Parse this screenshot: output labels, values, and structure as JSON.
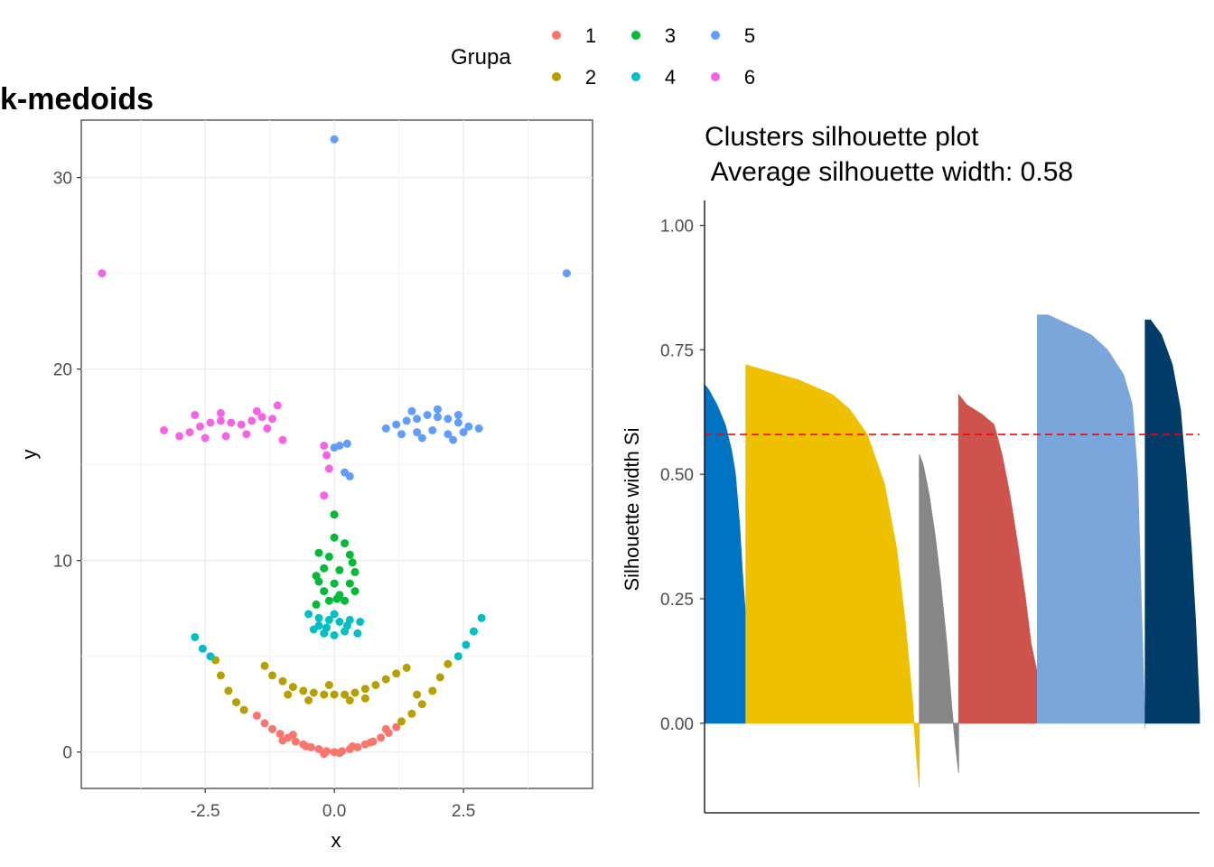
{
  "legend": {
    "title": "Grupa",
    "entries": [
      {
        "label": "1",
        "color": "#F8766D"
      },
      {
        "label": "2",
        "color": "#B79F00"
      },
      {
        "label": "3",
        "color": "#00BA38"
      },
      {
        "label": "4",
        "color": "#00BFC4"
      },
      {
        "label": "5",
        "color": "#619CFF"
      },
      {
        "label": "6",
        "color": "#F564E3"
      }
    ]
  },
  "chart_data": [
    {
      "type": "scatter",
      "title": "k-medoids",
      "xlabel": "x",
      "ylabel": "y",
      "xlim": [
        -4.9,
        5.0
      ],
      "ylim": [
        -1.9,
        33.0
      ],
      "xticks": [
        "-2.5",
        "0.0",
        "2.5"
      ],
      "xtick_values": [
        -2.5,
        0.0,
        2.5
      ],
      "yticks": [
        "0",
        "10",
        "20",
        "30"
      ],
      "ytick_values": [
        0,
        10,
        20,
        30
      ],
      "grid": true,
      "series": [
        {
          "name": "1",
          "color": "#F8766D",
          "points": [
            [
              -1.5,
              1.9
            ],
            [
              -1.35,
              1.5
            ],
            [
              -1.2,
              1.2
            ],
            [
              -1.05,
              0.95
            ],
            [
              -0.9,
              0.75
            ],
            [
              -0.75,
              0.55
            ],
            [
              -0.6,
              0.4
            ],
            [
              -0.45,
              0.25
            ],
            [
              -0.3,
              0.15
            ],
            [
              -0.15,
              0.05
            ],
            [
              0.0,
              0.0
            ],
            [
              0.15,
              0.05
            ],
            [
              0.3,
              0.15
            ],
            [
              0.45,
              0.25
            ],
            [
              0.6,
              0.4
            ],
            [
              0.75,
              0.55
            ],
            [
              0.9,
              0.75
            ],
            [
              1.05,
              1.0
            ],
            [
              1.2,
              1.3
            ],
            [
              -0.55,
              0.3
            ],
            [
              -0.2,
              -0.1
            ],
            [
              0.1,
              -0.05
            ],
            [
              0.35,
              0.3
            ],
            [
              0.7,
              0.5
            ],
            [
              1.0,
              1.2
            ],
            [
              -1.0,
              0.6
            ],
            [
              -0.8,
              0.9
            ]
          ]
        },
        {
          "name": "2",
          "color": "#B79F00",
          "points": [
            [
              -2.3,
              4.8
            ],
            [
              -2.2,
              4.0
            ],
            [
              -2.05,
              3.2
            ],
            [
              -1.9,
              2.6
            ],
            [
              -1.75,
              2.2
            ],
            [
              1.3,
              1.6
            ],
            [
              1.5,
              2.0
            ],
            [
              1.7,
              2.5
            ],
            [
              1.9,
              3.2
            ],
            [
              2.05,
              3.9
            ],
            [
              2.2,
              4.6
            ],
            [
              -1.35,
              4.5
            ],
            [
              -1.2,
              4.0
            ],
            [
              -1.0,
              3.7
            ],
            [
              -0.8,
              3.4
            ],
            [
              -0.6,
              3.2
            ],
            [
              -0.4,
              3.1
            ],
            [
              -0.2,
              3.0
            ],
            [
              0.0,
              3.0
            ],
            [
              0.2,
              3.0
            ],
            [
              0.4,
              3.1
            ],
            [
              0.6,
              3.3
            ],
            [
              0.8,
              3.5
            ],
            [
              1.0,
              3.8
            ],
            [
              1.2,
              4.1
            ],
            [
              1.4,
              4.4
            ],
            [
              -0.5,
              2.7
            ],
            [
              0.3,
              2.7
            ],
            [
              -0.1,
              3.5
            ],
            [
              0.6,
              2.8
            ],
            [
              -0.9,
              3.0
            ],
            [
              1.6,
              3.0
            ]
          ]
        },
        {
          "name": "3",
          "color": "#00BA38",
          "points": [
            [
              0.0,
              12.4
            ],
            [
              -0.3,
              10.4
            ],
            [
              0.3,
              10.3
            ],
            [
              -0.2,
              9.6
            ],
            [
              0.1,
              9.5
            ],
            [
              0.4,
              9.4
            ],
            [
              -0.3,
              8.9
            ],
            [
              0.0,
              8.8
            ],
            [
              0.3,
              8.8
            ],
            [
              -0.2,
              8.4
            ],
            [
              0.1,
              8.2
            ],
            [
              0.4,
              8.4
            ],
            [
              -0.1,
              7.9
            ],
            [
              0.2,
              7.9
            ],
            [
              -0.35,
              7.7
            ],
            [
              0.0,
              11.2
            ],
            [
              0.2,
              10.9
            ],
            [
              -0.1,
              10.2
            ],
            [
              0.35,
              9.9
            ],
            [
              -0.35,
              9.2
            ],
            [
              0.05,
              8.0
            ]
          ]
        },
        {
          "name": "4",
          "color": "#00BFC4",
          "points": [
            [
              -2.7,
              6.0
            ],
            [
              -2.55,
              5.4
            ],
            [
              -2.4,
              5.0
            ],
            [
              2.4,
              5.0
            ],
            [
              2.55,
              5.6
            ],
            [
              2.7,
              6.3
            ],
            [
              2.85,
              7.0
            ],
            [
              -0.5,
              7.2
            ],
            [
              -0.3,
              7.0
            ],
            [
              -0.1,
              6.9
            ],
            [
              0.1,
              6.8
            ],
            [
              0.3,
              6.9
            ],
            [
              0.5,
              6.8
            ],
            [
              -0.4,
              6.4
            ],
            [
              -0.2,
              6.2
            ],
            [
              0.0,
              6.1
            ],
            [
              0.2,
              6.3
            ],
            [
              0.45,
              6.2
            ],
            [
              -0.3,
              6.6
            ],
            [
              0.25,
              6.6
            ],
            [
              0.0,
              7.2
            ],
            [
              -0.15,
              6.5
            ]
          ]
        },
        {
          "name": "5",
          "color": "#619CFF",
          "points": [
            [
              0.0,
              32.0
            ],
            [
              4.5,
              25.0
            ],
            [
              1.0,
              16.9
            ],
            [
              1.2,
              17.1
            ],
            [
              1.4,
              17.3
            ],
            [
              1.6,
              17.4
            ],
            [
              1.8,
              17.6
            ],
            [
              2.0,
              17.5
            ],
            [
              2.2,
              17.4
            ],
            [
              2.4,
              17.2
            ],
            [
              2.6,
              17.0
            ],
            [
              2.8,
              16.9
            ],
            [
              1.3,
              16.6
            ],
            [
              1.6,
              16.7
            ],
            [
              1.9,
              16.8
            ],
            [
              2.2,
              16.6
            ],
            [
              2.5,
              16.7
            ],
            [
              1.5,
              17.8
            ],
            [
              2.0,
              17.9
            ],
            [
              2.4,
              17.6
            ],
            [
              1.7,
              16.4
            ],
            [
              2.3,
              16.3
            ],
            [
              0.0,
              15.9
            ],
            [
              0.1,
              16.0
            ],
            [
              0.2,
              14.6
            ],
            [
              0.25,
              16.1
            ],
            [
              0.3,
              14.4
            ]
          ]
        },
        {
          "name": "6",
          "color": "#F564E3",
          "points": [
            [
              -4.5,
              25.0
            ],
            [
              -3.3,
              16.8
            ],
            [
              -3.0,
              16.5
            ],
            [
              -2.8,
              16.7
            ],
            [
              -2.6,
              17.0
            ],
            [
              -2.4,
              17.2
            ],
            [
              -2.2,
              17.3
            ],
            [
              -2.0,
              17.2
            ],
            [
              -1.8,
              17.1
            ],
            [
              -1.6,
              17.3
            ],
            [
              -1.4,
              17.5
            ],
            [
              -1.2,
              17.4
            ],
            [
              -1.0,
              16.3
            ],
            [
              -2.5,
              16.4
            ],
            [
              -2.1,
              16.5
            ],
            [
              -1.7,
              16.6
            ],
            [
              -2.7,
              17.6
            ],
            [
              -2.2,
              17.7
            ],
            [
              -1.5,
              17.8
            ],
            [
              -1.1,
              18.1
            ],
            [
              -1.3,
              16.9
            ],
            [
              -0.2,
              13.4
            ],
            [
              -0.15,
              15.5
            ],
            [
              -0.1,
              14.8
            ],
            [
              -0.2,
              16.0
            ]
          ]
        }
      ]
    },
    {
      "type": "area",
      "title": "Clusters silhouette plot\n Average silhouette width: 0.58",
      "ylabel": "Silhouette width Si",
      "xlabel": "",
      "ylim": [
        -0.18,
        1.05
      ],
      "yticks": [
        "0.00",
        "0.25",
        "0.50",
        "0.75",
        "1.00"
      ],
      "ytick_values": [
        0,
        0.25,
        0.5,
        0.75,
        1.0
      ],
      "average_line": 0.58,
      "average_line_color": "#FF0000",
      "grid": false,
      "clusters": [
        {
          "name": "1",
          "color": "#0073C2",
          "n": 44,
          "profile": [
            [
              0,
              0.68
            ],
            [
              0.1,
              0.67
            ],
            [
              0.3,
              0.64
            ],
            [
              0.5,
              0.6
            ],
            [
              0.65,
              0.55
            ],
            [
              0.75,
              0.5
            ],
            [
              0.85,
              0.4
            ],
            [
              0.92,
              0.3
            ],
            [
              1,
              0.21
            ]
          ]
        },
        {
          "name": "2",
          "color": "#EFC000",
          "n": 185,
          "profile": [
            [
              0,
              0.72
            ],
            [
              0.1,
              0.71
            ],
            [
              0.3,
              0.69
            ],
            [
              0.5,
              0.66
            ],
            [
              0.6,
              0.63
            ],
            [
              0.7,
              0.58
            ],
            [
              0.8,
              0.48
            ],
            [
              0.87,
              0.35
            ],
            [
              0.92,
              0.2
            ],
            [
              0.96,
              0.05
            ],
            [
              0.98,
              -0.05
            ],
            [
              1,
              -0.13
            ]
          ]
        },
        {
          "name": "3",
          "color": "#868686",
          "n": 42,
          "profile": [
            [
              0,
              0.54
            ],
            [
              0.1,
              0.52
            ],
            [
              0.25,
              0.46
            ],
            [
              0.4,
              0.38
            ],
            [
              0.55,
              0.28
            ],
            [
              0.7,
              0.16
            ],
            [
              0.82,
              0.04
            ],
            [
              0.9,
              -0.03
            ],
            [
              1,
              -0.1
            ]
          ]
        },
        {
          "name": "4",
          "color": "#CD534C",
          "n": 84,
          "profile": [
            [
              0,
              0.66
            ],
            [
              0.1,
              0.64
            ],
            [
              0.3,
              0.62
            ],
            [
              0.45,
              0.6
            ],
            [
              0.55,
              0.54
            ],
            [
              0.65,
              0.46
            ],
            [
              0.75,
              0.36
            ],
            [
              0.85,
              0.25
            ],
            [
              0.92,
              0.16
            ],
            [
              1,
              0.1
            ]
          ]
        },
        {
          "name": "5",
          "color": "#7AA6DC",
          "n": 115,
          "profile": [
            [
              0,
              0.82
            ],
            [
              0.1,
              0.82
            ],
            [
              0.3,
              0.8
            ],
            [
              0.5,
              0.78
            ],
            [
              0.65,
              0.75
            ],
            [
              0.8,
              0.7
            ],
            [
              0.88,
              0.64
            ],
            [
              0.93,
              0.5
            ],
            [
              0.97,
              0.2
            ],
            [
              1,
              -0.01
            ]
          ]
        },
        {
          "name": "6",
          "color": "#003C67",
          "n": 58,
          "profile": [
            [
              0,
              0.81
            ],
            [
              0.1,
              0.81
            ],
            [
              0.3,
              0.78
            ],
            [
              0.5,
              0.72
            ],
            [
              0.65,
              0.63
            ],
            [
              0.75,
              0.5
            ],
            [
              0.85,
              0.35
            ],
            [
              0.93,
              0.2
            ],
            [
              1,
              0.02
            ]
          ]
        }
      ]
    }
  ]
}
